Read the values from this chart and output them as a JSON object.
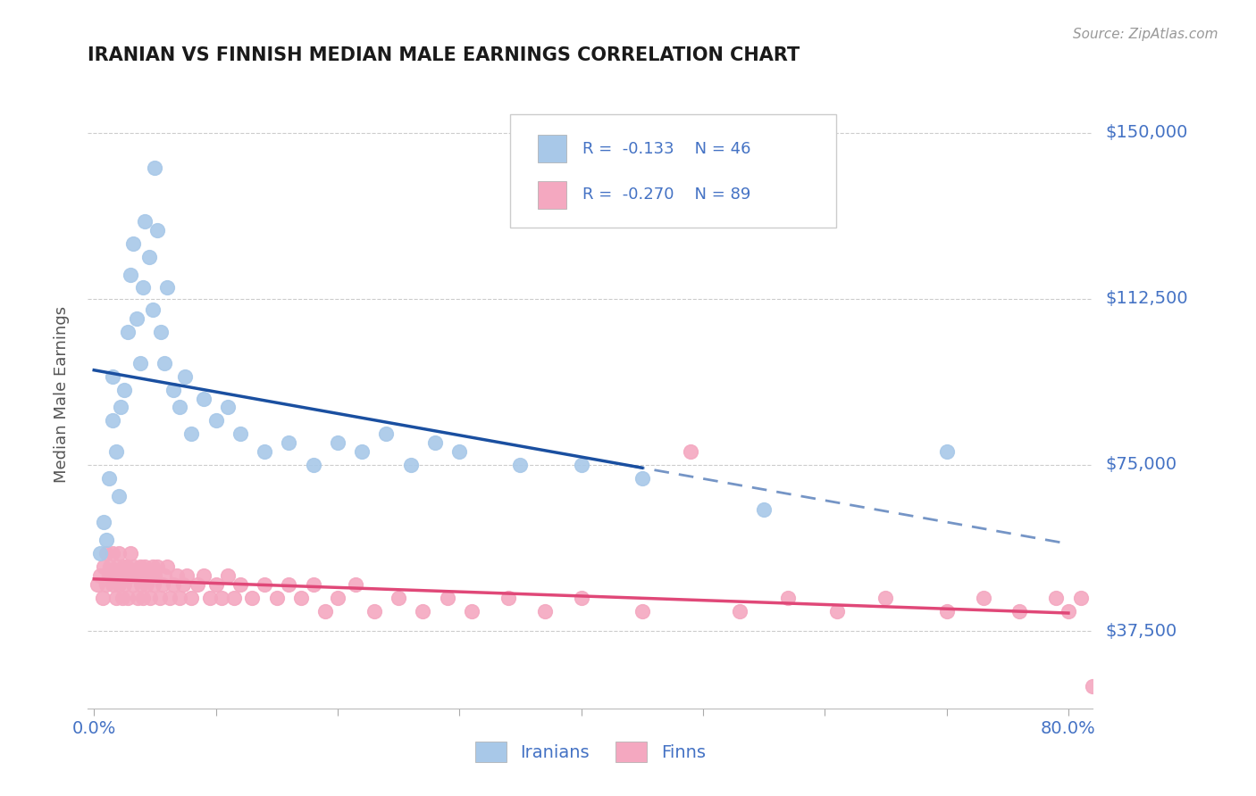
{
  "title": "IRANIAN VS FINNISH MEDIAN MALE EARNINGS CORRELATION CHART",
  "ylabel": "Median Male Earnings",
  "source": "Source: ZipAtlas.com",
  "xlim": [
    -0.005,
    0.82
  ],
  "ylim": [
    20000,
    162000
  ],
  "yticks": [
    37500,
    75000,
    112500,
    150000
  ],
  "ytick_labels": [
    "$37,500",
    "$75,000",
    "$112,500",
    "$150,000"
  ],
  "xtick_positions": [
    0.0,
    0.1,
    0.2,
    0.3,
    0.4,
    0.5,
    0.6,
    0.7,
    0.8
  ],
  "xtick_labels": [
    "0.0%",
    "",
    "",
    "",
    "",
    "",
    "",
    "",
    "80.0%"
  ],
  "background_color": "#ffffff",
  "grid_color": "#cccccc",
  "title_color": "#1a1a1a",
  "axis_label_color": "#4472c4",
  "iranians_color": "#a8c8e8",
  "finns_color": "#f4a8c0",
  "iranians_line_color": "#1a4fa0",
  "finns_line_color": "#e04878",
  "legend_R_color": "#4472c4",
  "iranians_R": -0.133,
  "iranians_N": 46,
  "finns_R": -0.27,
  "finns_N": 89,
  "iranians_x": [
    0.005,
    0.008,
    0.01,
    0.012,
    0.015,
    0.015,
    0.018,
    0.02,
    0.022,
    0.025,
    0.028,
    0.03,
    0.032,
    0.035,
    0.038,
    0.04,
    0.042,
    0.045,
    0.048,
    0.05,
    0.052,
    0.055,
    0.058,
    0.06,
    0.065,
    0.07,
    0.075,
    0.08,
    0.09,
    0.1,
    0.11,
    0.12,
    0.14,
    0.16,
    0.18,
    0.2,
    0.22,
    0.24,
    0.26,
    0.28,
    0.3,
    0.35,
    0.4,
    0.45,
    0.55,
    0.7
  ],
  "iranians_y": [
    55000,
    62000,
    58000,
    72000,
    85000,
    95000,
    78000,
    68000,
    88000,
    92000,
    105000,
    118000,
    125000,
    108000,
    98000,
    115000,
    130000,
    122000,
    110000,
    142000,
    128000,
    105000,
    98000,
    115000,
    92000,
    88000,
    95000,
    82000,
    90000,
    85000,
    88000,
    82000,
    78000,
    80000,
    75000,
    80000,
    78000,
    82000,
    75000,
    80000,
    78000,
    75000,
    75000,
    72000,
    65000,
    78000
  ],
  "finns_x": [
    0.003,
    0.005,
    0.007,
    0.008,
    0.01,
    0.01,
    0.012,
    0.013,
    0.015,
    0.015,
    0.017,
    0.018,
    0.019,
    0.02,
    0.02,
    0.022,
    0.023,
    0.024,
    0.025,
    0.025,
    0.027,
    0.028,
    0.03,
    0.03,
    0.032,
    0.033,
    0.035,
    0.036,
    0.038,
    0.039,
    0.04,
    0.04,
    0.042,
    0.043,
    0.045,
    0.046,
    0.048,
    0.049,
    0.05,
    0.052,
    0.054,
    0.056,
    0.058,
    0.06,
    0.062,
    0.065,
    0.068,
    0.07,
    0.073,
    0.076,
    0.08,
    0.085,
    0.09,
    0.095,
    0.1,
    0.105,
    0.11,
    0.115,
    0.12,
    0.13,
    0.14,
    0.15,
    0.16,
    0.17,
    0.18,
    0.19,
    0.2,
    0.215,
    0.23,
    0.25,
    0.27,
    0.29,
    0.31,
    0.34,
    0.37,
    0.4,
    0.45,
    0.49,
    0.53,
    0.57,
    0.61,
    0.65,
    0.7,
    0.73,
    0.76,
    0.79,
    0.8,
    0.81,
    0.82
  ],
  "finns_y": [
    48000,
    50000,
    45000,
    52000,
    55000,
    48000,
    50000,
    52000,
    48000,
    55000,
    50000,
    45000,
    52000,
    48000,
    55000,
    50000,
    45000,
    52000,
    48000,
    50000,
    52000,
    45000,
    50000,
    55000,
    48000,
    52000,
    50000,
    45000,
    52000,
    48000,
    50000,
    45000,
    52000,
    48000,
    50000,
    45000,
    52000,
    48000,
    50000,
    52000,
    45000,
    48000,
    50000,
    52000,
    45000,
    48000,
    50000,
    45000,
    48000,
    50000,
    45000,
    48000,
    50000,
    45000,
    48000,
    45000,
    50000,
    45000,
    48000,
    45000,
    48000,
    45000,
    48000,
    45000,
    48000,
    42000,
    45000,
    48000,
    42000,
    45000,
    42000,
    45000,
    42000,
    45000,
    42000,
    45000,
    42000,
    78000,
    42000,
    45000,
    42000,
    45000,
    42000,
    45000,
    42000,
    45000,
    42000,
    45000,
    25000
  ]
}
